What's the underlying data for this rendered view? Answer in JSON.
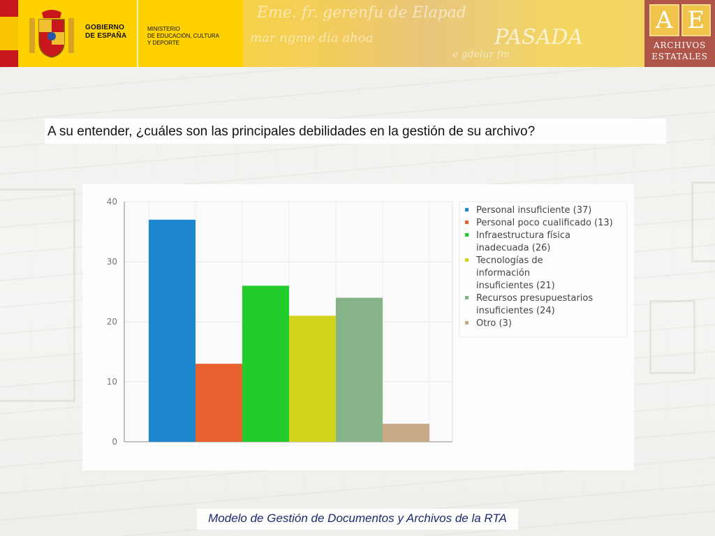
{
  "header": {
    "gov_line1": "GOBIERNO",
    "gov_line2": "DE ESPAÑA",
    "min_line1": "MINISTERIO",
    "min_line2": "DE EDUCACIÓN, CULTURA",
    "min_line3": "Y DEPORTE",
    "banner_text": "PASADA",
    "ae_letter1": "A",
    "ae_letter2": "E",
    "ae_line1": "ARCHIVOS",
    "ae_line2": "ESTATALES",
    "icons": [
      "coat-of-arms-icon",
      "spain-flag-icon"
    ]
  },
  "question": "A su entender, ¿cuáles son las principales debilidades en la gestión de su archivo?",
  "footer": "Modelo de Gestión de Documentos y Archivos de la RTA",
  "chart_data": {
    "type": "bar",
    "categories": [
      "Personal insuficiente",
      "Personal poco cualificado",
      "Infraestructura física inadecuada",
      "Tecnologías de información insuficientes",
      "Recursos presupuestarios insuficientes",
      "Otro"
    ],
    "values": [
      37,
      13,
      26,
      21,
      24,
      3
    ],
    "colors": [
      "#1c86cf",
      "#e8622f",
      "#22cc2d",
      "#d2d41c",
      "#86b488",
      "#c8a985"
    ],
    "legend": [
      [
        "Personal insuficiente (37)"
      ],
      [
        "Personal poco cualificado (13)"
      ],
      [
        "Infraestructura física",
        "inadecuada (26)"
      ],
      [
        "Tecnologías de",
        "información",
        "insuficientes (21)"
      ],
      [
        "Recursos presupuestarios",
        "insuficientes (24)"
      ],
      [
        "Otro (3)"
      ]
    ],
    "y_ticks": [
      "0",
      "10",
      "20",
      "30",
      "40"
    ],
    "ylim": [
      0,
      40
    ],
    "grid": true,
    "legend_position": "right",
    "title": "",
    "xlabel": "",
    "ylabel": ""
  }
}
